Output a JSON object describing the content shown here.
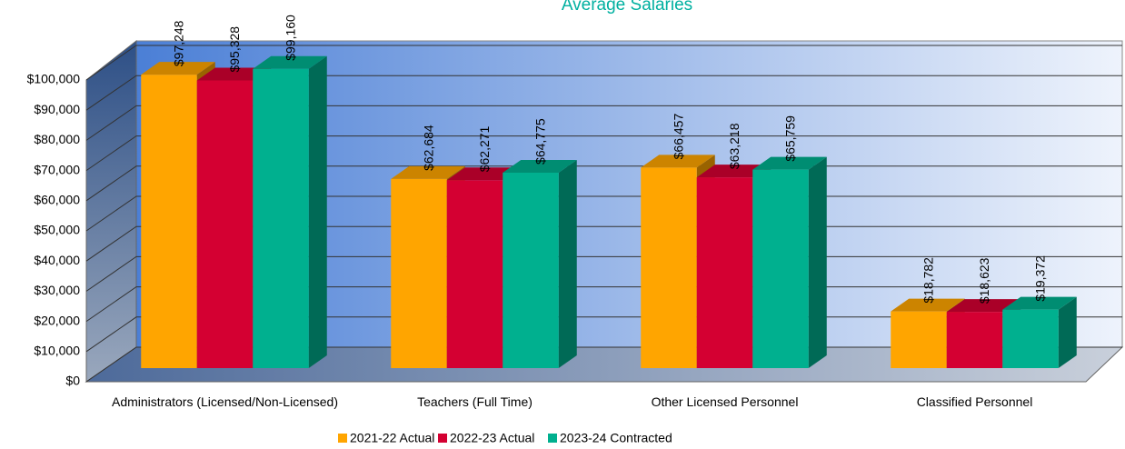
{
  "chart_data": {
    "type": "bar3d",
    "title": "Average Salaries",
    "categories": [
      "Administrators (Licensed/Non-Licensed)",
      "Teachers (Full Time)",
      "Other Licensed Personnel",
      "Classified Personnel"
    ],
    "series": [
      {
        "name": "2021-22 Actual",
        "color": "#FFA500",
        "values": [
          97248,
          62684,
          66457,
          18782
        ],
        "value_labels": [
          "$97,248",
          "$62,684",
          "$66,457",
          "$18,782"
        ]
      },
      {
        "name": "2022-23 Actual",
        "color": "#D40032",
        "values": [
          95328,
          62271,
          63218,
          18623
        ],
        "value_labels": [
          "$95,328",
          "$62,271",
          "$63,218",
          "$18,623"
        ]
      },
      {
        "name": "2023-24 Contracted",
        "color": "#00B08F",
        "values": [
          99160,
          64775,
          65759,
          19372
        ],
        "value_labels": [
          "$99,160",
          "$64,775",
          "$65,759",
          "$19,372"
        ]
      }
    ],
    "ylim": [
      0,
      100000
    ],
    "yticks": [
      {
        "value": 0,
        "label": "$0"
      },
      {
        "value": 10000,
        "label": "$10,000"
      },
      {
        "value": 20000,
        "label": "$20,000"
      },
      {
        "value": 30000,
        "label": "$30,000"
      },
      {
        "value": 40000,
        "label": "$40,000"
      },
      {
        "value": 50000,
        "label": "$50,000"
      },
      {
        "value": 60000,
        "label": "$60,000"
      },
      {
        "value": 70000,
        "label": "$70,000"
      },
      {
        "value": 80000,
        "label": "$80,000"
      },
      {
        "value": 90000,
        "label": "$90,000"
      },
      {
        "value": 100000,
        "label": "$100,000"
      }
    ],
    "grid": true,
    "legend": "bottom"
  }
}
